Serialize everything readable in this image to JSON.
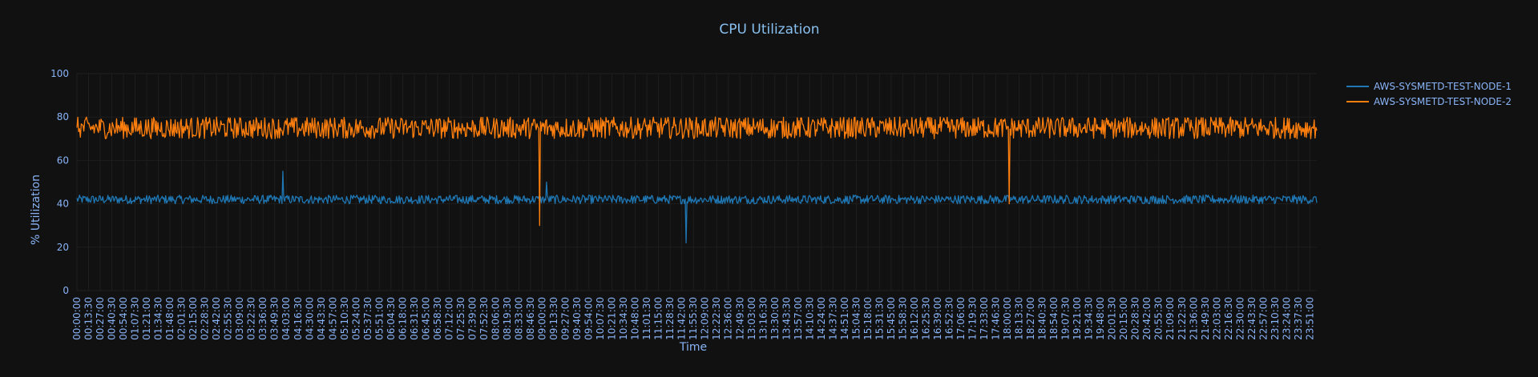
{
  "chart_data": {
    "type": "line",
    "title": "CPU Utilization",
    "xlabel": "Time",
    "ylabel": "% Utilization",
    "ylim": [
      0,
      100
    ],
    "y_ticks": [
      "0",
      "20",
      "40",
      "60",
      "80",
      "100"
    ],
    "x_range": [
      "00:00:00",
      "23:59:00"
    ],
    "x_tick_interval": "00:13:30",
    "grid": true,
    "legend_position": "top-right",
    "series": [
      {
        "name": "AWS-SYSMETD-TEST-NODE-1",
        "color": "#1f77b4",
        "sample_interval": "00:01:00",
        "band": [
          40,
          44
        ],
        "typical": 42,
        "spikes": [
          {
            "time": "03:59:00",
            "value": 55
          },
          {
            "time": "09:05:00",
            "value": 50
          },
          {
            "time": "11:47:00",
            "value": 22
          }
        ]
      },
      {
        "name": "AWS-SYSMETD-TEST-NODE-2",
        "color": "#ff7f0e",
        "sample_interval": "00:01:00",
        "band": [
          70,
          80
        ],
        "typical": 75,
        "spikes": [
          {
            "time": "08:57:00",
            "value": 30
          },
          {
            "time": "18:02:00",
            "value": 40
          }
        ]
      }
    ]
  },
  "colors": {
    "background": "#111111",
    "text": "#8ab4f8",
    "title": "#88c0f0",
    "grid": "#1e1e1e"
  }
}
